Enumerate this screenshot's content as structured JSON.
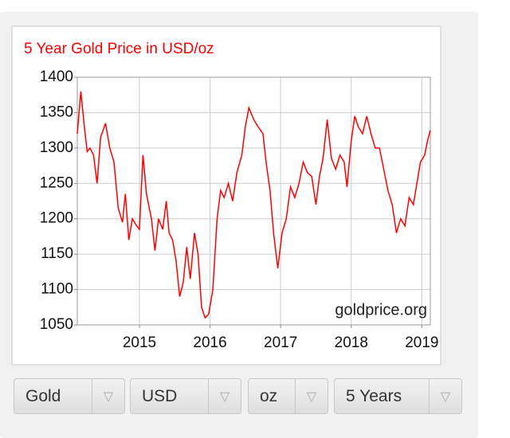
{
  "chart_data": {
    "type": "line",
    "title": "5 Year Gold Price in USD/oz",
    "watermark": "goldprice.org",
    "color": "#ff0000",
    "x": [
      2014.12,
      2014.17,
      2014.22,
      2014.26,
      2014.3,
      2014.35,
      2014.4,
      2014.45,
      2014.52,
      2014.58,
      2014.64,
      2014.7,
      2014.76,
      2014.8,
      2014.85,
      2014.9,
      2014.96,
      2015.0,
      2015.05,
      2015.1,
      2015.17,
      2015.22,
      2015.27,
      2015.33,
      2015.38,
      2015.42,
      2015.47,
      2015.52,
      2015.57,
      2015.62,
      2015.67,
      2015.72,
      2015.78,
      2015.83,
      2015.88,
      2015.93,
      2015.98,
      2016.04,
      2016.1,
      2016.15,
      2016.2,
      2016.26,
      2016.32,
      2016.38,
      2016.45,
      2016.5,
      2016.55,
      2016.62,
      2016.68,
      2016.75,
      2016.8,
      2016.85,
      2016.9,
      2016.96,
      2017.02,
      2017.08,
      2017.14,
      2017.2,
      2017.26,
      2017.32,
      2017.38,
      2017.44,
      2017.5,
      2017.55,
      2017.6,
      2017.66,
      2017.72,
      2017.78,
      2017.84,
      2017.9,
      2017.94,
      2018.0,
      2018.05,
      2018.1,
      2018.16,
      2018.22,
      2018.28,
      2018.34,
      2018.4,
      2018.46,
      2018.52,
      2018.58,
      2018.64,
      2018.7,
      2018.76,
      2018.82,
      2018.88,
      2018.93,
      2018.98,
      2019.04,
      2019.08,
      2019.12
    ],
    "values": [
      1320,
      1380,
      1330,
      1295,
      1300,
      1290,
      1250,
      1315,
      1335,
      1300,
      1280,
      1215,
      1195,
      1235,
      1170,
      1200,
      1190,
      1185,
      1290,
      1235,
      1200,
      1155,
      1200,
      1185,
      1225,
      1180,
      1170,
      1140,
      1090,
      1110,
      1160,
      1115,
      1180,
      1150,
      1075,
      1060,
      1065,
      1100,
      1200,
      1240,
      1230,
      1250,
      1225,
      1265,
      1290,
      1330,
      1357,
      1340,
      1330,
      1320,
      1275,
      1240,
      1180,
      1130,
      1180,
      1200,
      1245,
      1230,
      1250,
      1280,
      1265,
      1260,
      1220,
      1260,
      1285,
      1340,
      1285,
      1270,
      1290,
      1280,
      1245,
      1310,
      1345,
      1330,
      1320,
      1345,
      1320,
      1300,
      1300,
      1270,
      1240,
      1220,
      1180,
      1200,
      1190,
      1230,
      1220,
      1250,
      1280,
      1290,
      1310,
      1325
    ],
    "xlim": [
      2014.12,
      2019.12
    ],
    "xticks": [
      2015,
      2016,
      2017,
      2018,
      2019
    ],
    "ylim": [
      1050,
      1400
    ],
    "yticks": [
      1050,
      1100,
      1150,
      1200,
      1250,
      1300,
      1350,
      1400
    ],
    "grid": true
  },
  "controls": [
    "Gold",
    "USD",
    "oz",
    "5 Years"
  ]
}
